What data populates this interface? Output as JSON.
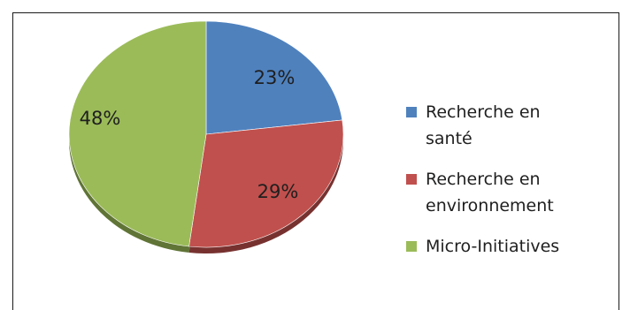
{
  "chart_data": {
    "type": "pie",
    "title": "",
    "slices": [
      {
        "label": "Recherche en santé",
        "value": 23,
        "display": "23%",
        "color": "#4f81bd"
      },
      {
        "label": "Recherche en environnement",
        "value": 29,
        "display": "29%",
        "color": "#c0504d"
      },
      {
        "label": "Micro-Initiatives",
        "value": 48,
        "display": "48%",
        "color": "#9bbb59"
      }
    ],
    "legend": {
      "position": "right",
      "items": [
        {
          "lines": [
            "Recherche en",
            "santé"
          ]
        },
        {
          "lines": [
            "Recherche en",
            "environnement"
          ]
        },
        {
          "lines": [
            "Micro-Initiatives"
          ]
        }
      ]
    }
  }
}
